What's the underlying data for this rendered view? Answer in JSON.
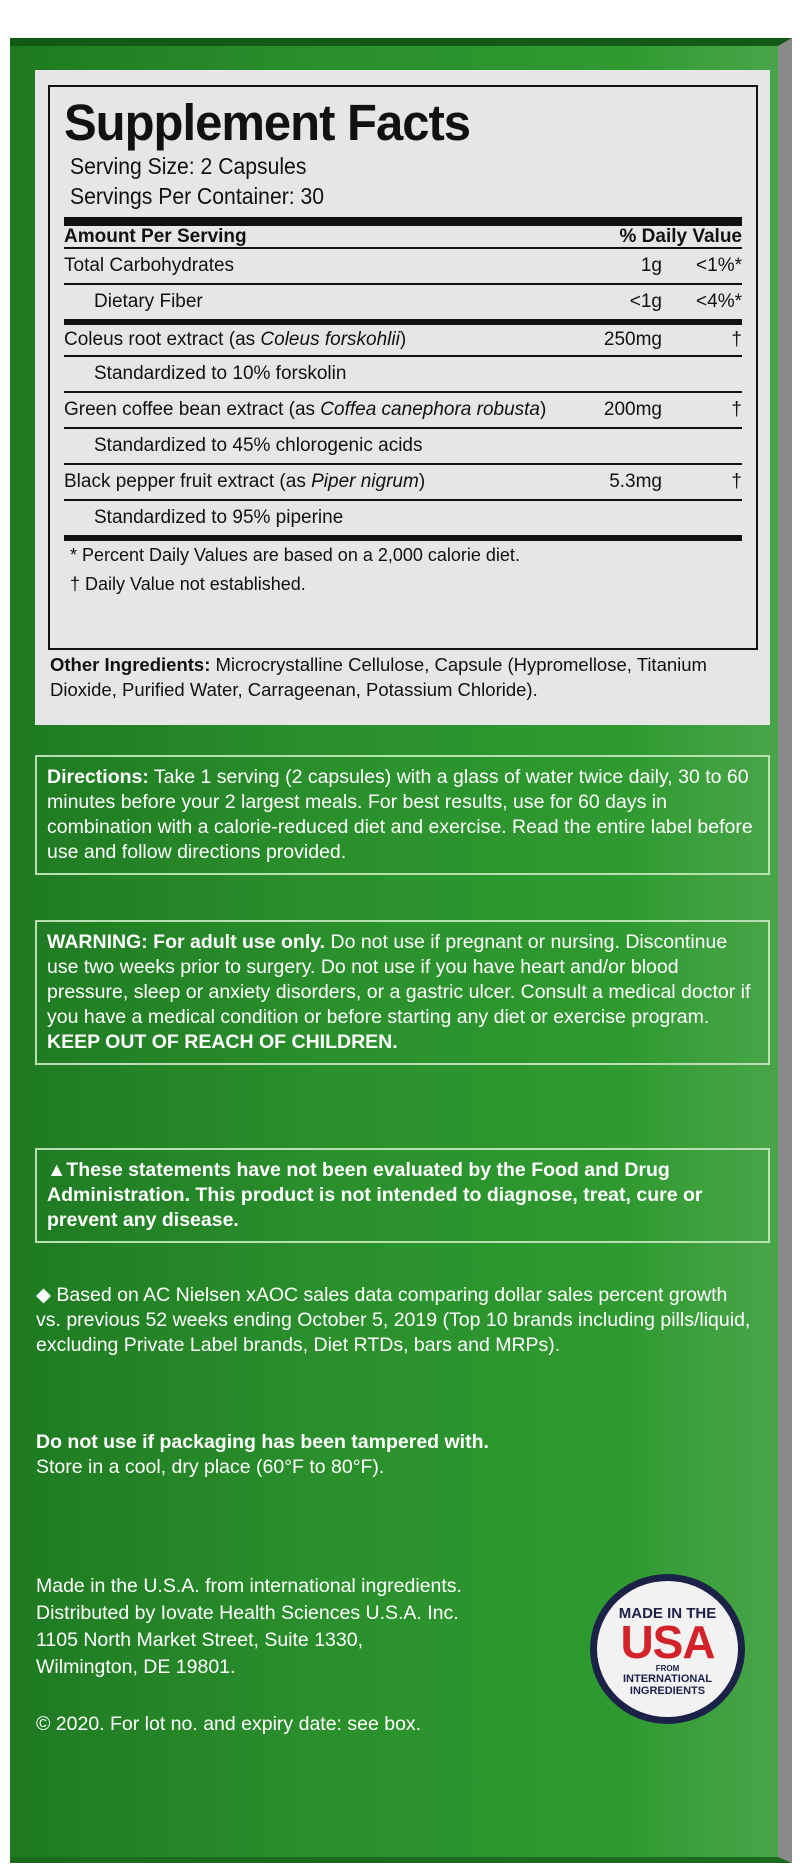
{
  "facts": {
    "title": "Supplement Facts",
    "serving_size": "Serving Size: 2 Capsules",
    "servings_per_container": "Servings Per Container: 30",
    "header_amount": "Amount Per Serving",
    "header_dv": "% Daily Value",
    "rows": [
      {
        "name": "Total Carbohydrates",
        "amount": "1g",
        "dv": "<1%*"
      },
      {
        "name": "Dietary Fiber",
        "amount": "<1g",
        "dv": "<4%*"
      },
      {
        "name": "Coleus root extract (as ",
        "italic": "Coleus forskohlii",
        "close": ")",
        "amount": "250mg",
        "dv": "†"
      },
      {
        "name": "Standardized to 10% forskolin"
      },
      {
        "name": "Green coffee bean extract (as ",
        "italic": "Coffea canephora robusta",
        "close": ")",
        "amount": "200mg",
        "dv": "†"
      },
      {
        "name": "Standardized to 45% chlorogenic acids"
      },
      {
        "name": "Black pepper fruit extract (as ",
        "italic": "Piper nigrum",
        "close": ")",
        "amount": "5.3mg",
        "dv": "†"
      },
      {
        "name": "Standardized to 95% piperine"
      }
    ],
    "footnote1": "* Percent Daily Values are based on a 2,000 calorie diet.",
    "footnote2": "† Daily Value not established."
  },
  "other": {
    "label": "Other Ingredients:",
    "text": " Microcrystalline Cellulose, Capsule (Hypromellose, Titanium Dioxide, Purified Water, Carrageenan, Potassium Chloride)."
  },
  "directions": {
    "label": "Directions:",
    "text": " Take 1 serving (2 capsules) with a glass of water twice daily, 30 to 60 minutes before your 2 largest meals. For best results, use for 60 days in combination with a calorie-reduced diet and exercise. Read the entire label before use and follow directions provided."
  },
  "warning": {
    "label": "WARNING: For adult use only.",
    "text": " Do not use if pregnant or nursing. Discontinue use two weeks prior to surgery. Do not use if you have heart and/or blood pressure, sleep or anxiety disorders, or a gastric ulcer. Consult a medical doctor if you have a medical condition or before starting any diet or exercise program. ",
    "bold_end": "KEEP OUT OF REACH OF CHILDREN."
  },
  "fda": "▲These statements have not been evaluated by the Food and Drug Administration. This product is not intended to diagnose, treat, cure or prevent any disease.",
  "nielsen": "◆ Based on AC Nielsen xAOC sales data comparing dollar sales percent growth vs. previous 52 weeks ending October 5, 2019 (Top 10 brands including pills/liquid, excluding Private Label brands, Diet RTDs, bars and MRPs).",
  "tamper": "Do not use if packaging has been tampered with.",
  "store": "Store in a cool, dry place (60°F to 80°F).",
  "made": [
    "Made in the U.S.A. from international ingredients.",
    "Distributed by Iovate Health Sciences U.S.A. Inc.",
    "1105 North Market Street, Suite 1330,",
    "Wilmington, DE 19801."
  ],
  "copyright": "© 2020. For lot no. and expiry date: see box.",
  "badge": {
    "line1": "MADE IN THE",
    "line2": "USA",
    "line3": "FROM",
    "line4": "INTERNATIONAL",
    "line5": "INGREDIENTS"
  },
  "colors": {
    "green": "#2a8f2c",
    "badge_red": "#d2232a",
    "badge_navy": "#1b2147"
  }
}
